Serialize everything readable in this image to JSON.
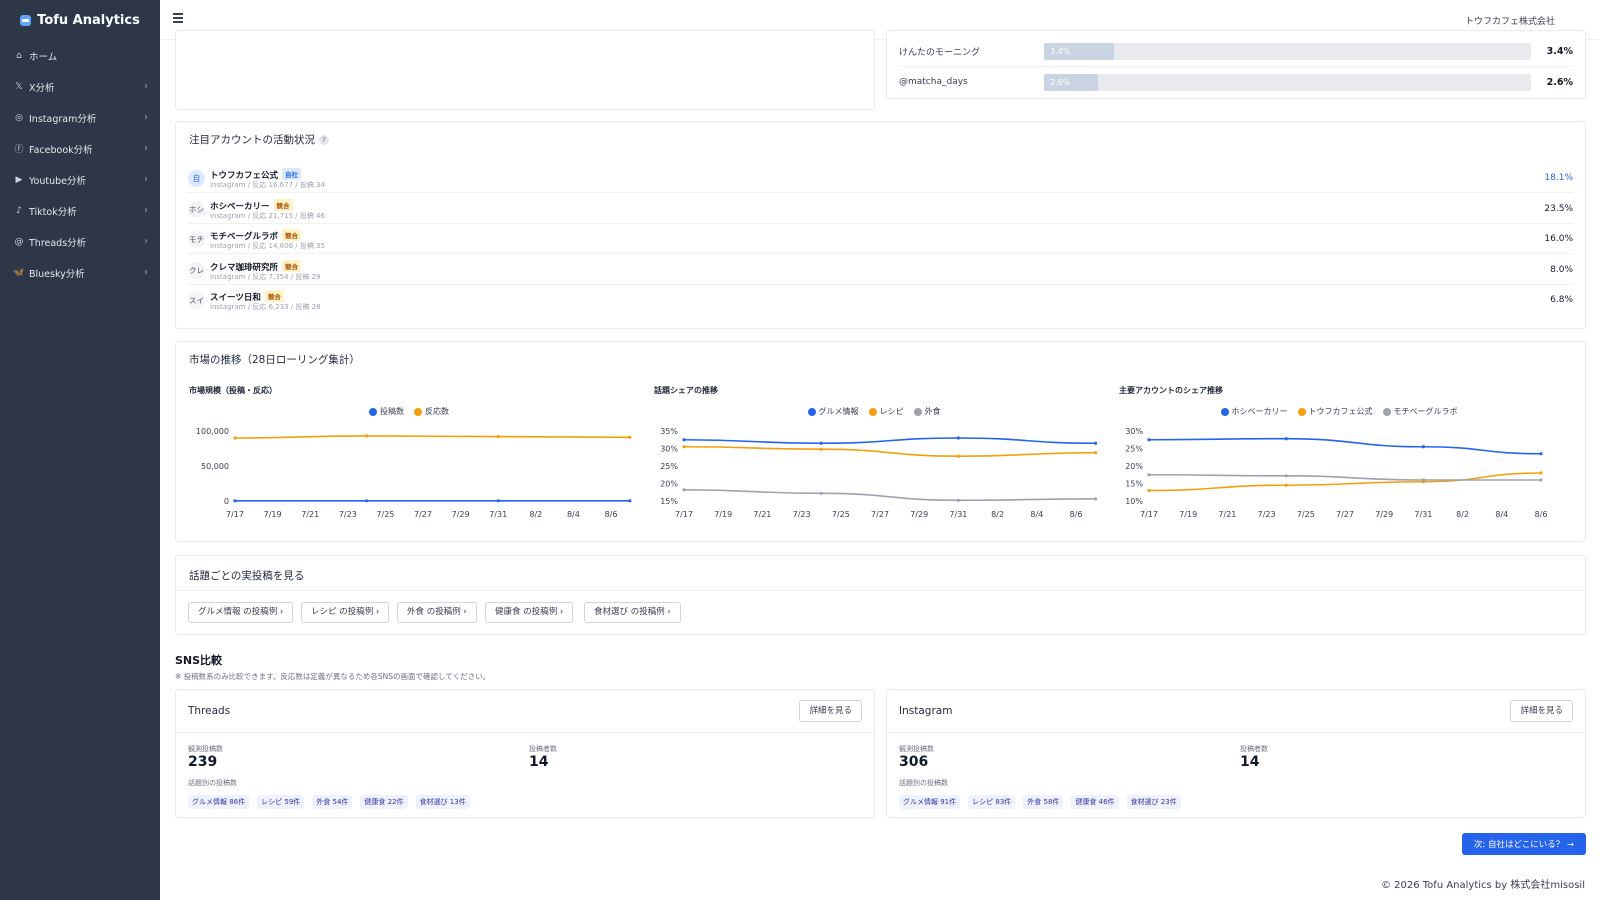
{
  "brand": {
    "name": "Tofu Analytics"
  },
  "sidebar": {
    "items": [
      {
        "icon": "⌂",
        "icon_name": "home-icon",
        "label": "ホーム",
        "chevron": false
      },
      {
        "icon": "𝕏",
        "icon_name": "x-icon",
        "label": "X分析",
        "chevron": true
      },
      {
        "icon": "◎",
        "icon_name": "instagram-icon",
        "label": "Instagram分析",
        "chevron": true
      },
      {
        "icon": "ⓕ",
        "icon_name": "facebook-icon",
        "label": "Facebook分析",
        "chevron": true
      },
      {
        "icon": "▶",
        "icon_name": "youtube-icon",
        "label": "Youtube分析",
        "chevron": true
      },
      {
        "icon": "♪",
        "icon_name": "tiktok-icon",
        "label": "Tiktok分析",
        "chevron": true
      },
      {
        "icon": "@",
        "icon_name": "threads-icon",
        "label": "Threads分析",
        "chevron": true
      },
      {
        "icon": "🦋",
        "icon_name": "bluesky-icon",
        "label": "Bluesky分析",
        "chevron": true
      }
    ]
  },
  "header": {
    "company": "トウフカフェ株式会社"
  },
  "ranking": {
    "rows": [
      {
        "name": "けんたのモーニング",
        "value": 3.4,
        "label": "3.4%"
      },
      {
        "name": "@matcha_days",
        "value": 2.6,
        "label": "2.6%"
      }
    ],
    "max": 23.5
  },
  "accounts": {
    "title": "注目アカウントの活動状況",
    "help": "?",
    "rows": [
      {
        "avatar": "自",
        "name": "トウフカフェ公式",
        "badge": "自社",
        "self": true,
        "meta": "instagram / 反応 16,677 / 投稿 34",
        "share": "18.1%"
      },
      {
        "avatar": "ホシ",
        "name": "ホシベーカリー",
        "badge": "競合",
        "self": false,
        "meta": "instagram / 反応 21,715 / 投稿 46",
        "share": "23.5%"
      },
      {
        "avatar": "モチ",
        "name": "モチベーグルラボ",
        "badge": "競合",
        "self": false,
        "meta": "instagram / 反応 14,806 / 投稿 35",
        "share": "16.0%"
      },
      {
        "avatar": "クレ",
        "name": "クレマ珈琲研究所",
        "badge": "競合",
        "self": false,
        "meta": "instagram / 反応 7,354 / 投稿 29",
        "share": "8.0%"
      },
      {
        "avatar": "スイ",
        "name": "スイーツ日和",
        "badge": "競合",
        "self": false,
        "meta": "instagram / 反応 6,233 / 投稿 28",
        "share": "6.8%"
      }
    ]
  },
  "market": {
    "title": "市場の推移（28日ローリング集計）"
  },
  "chart_data": [
    {
      "type": "line",
      "title": "市場規模（投稿・反応）",
      "x": [
        "7/17",
        "7/19",
        "7/21",
        "7/23",
        "7/25",
        "7/27",
        "7/29",
        "7/31",
        "8/2",
        "8/4",
        "8/6"
      ],
      "yticks": [
        0,
        50000,
        100000
      ],
      "ytick_labels": [
        "0",
        "50,000",
        "100,000"
      ],
      "ylim": [
        0,
        100000
      ],
      "series": [
        {
          "name": "投稿数",
          "color": "#2563eb",
          "points": [
            [
              0,
              300
            ],
            [
              3.5,
              300
            ],
            [
              7,
              300
            ],
            [
              10.5,
              300
            ]
          ]
        },
        {
          "name": "反応数",
          "color": "#f59e0b",
          "points": [
            [
              0,
              90000
            ],
            [
              3.5,
              93000
            ],
            [
              7,
              92000
            ],
            [
              10.5,
              91000
            ]
          ]
        }
      ]
    },
    {
      "type": "line",
      "title": "話題シェアの推移",
      "x": [
        "7/17",
        "7/19",
        "7/21",
        "7/23",
        "7/25",
        "7/27",
        "7/29",
        "7/31",
        "8/2",
        "8/4",
        "8/6"
      ],
      "yticks": [
        15,
        20,
        25,
        30,
        35
      ],
      "ytick_labels": [
        "15%",
        "20%",
        "25%",
        "30%",
        "35%"
      ],
      "ylim": [
        15,
        35
      ],
      "series": [
        {
          "name": "グルメ情報",
          "color": "#2563eb",
          "points": [
            [
              0,
              32.5
            ],
            [
              3.5,
              31.5
            ],
            [
              7,
              33
            ],
            [
              10.5,
              31.5
            ]
          ]
        },
        {
          "name": "レシピ",
          "color": "#f59e0b",
          "points": [
            [
              0,
              30.5
            ],
            [
              3.5,
              29.8
            ],
            [
              7,
              27.8
            ],
            [
              10.5,
              28.8
            ]
          ]
        },
        {
          "name": "外食",
          "color": "#9ca3af",
          "points": [
            [
              0,
              18.2
            ],
            [
              3.5,
              17.2
            ],
            [
              7,
              15.2
            ],
            [
              10.5,
              15.6
            ]
          ]
        }
      ]
    },
    {
      "type": "line",
      "title": "主要アカウントのシェア推移",
      "x": [
        "7/17",
        "7/19",
        "7/21",
        "7/23",
        "7/25",
        "7/27",
        "7/29",
        "7/31",
        "8/2",
        "8/4",
        "8/6"
      ],
      "yticks": [
        10,
        15,
        20,
        25,
        30
      ],
      "ytick_labels": [
        "10%",
        "15%",
        "20%",
        "25%",
        "30%"
      ],
      "ylim": [
        10,
        30
      ],
      "series": [
        {
          "name": "ホシベーカリー",
          "color": "#2563eb",
          "points": [
            [
              0,
              27.5
            ],
            [
              3.5,
              27.8
            ],
            [
              7,
              25.5
            ],
            [
              10,
              23.5
            ]
          ]
        },
        {
          "name": "トウフカフェ公式",
          "color": "#f59e0b",
          "points": [
            [
              0,
              13
            ],
            [
              3.5,
              14.5
            ],
            [
              7,
              15.5
            ],
            [
              10,
              18
            ]
          ]
        },
        {
          "name": "モチベーグルラボ",
          "color": "#9ca3af",
          "points": [
            [
              0,
              17.5
            ],
            [
              3.5,
              17.2
            ],
            [
              7,
              16
            ],
            [
              10,
              16
            ]
          ]
        }
      ]
    }
  ],
  "topics": {
    "title": "話題ごとの実投稿を見る",
    "buttons": [
      "グルメ情報 の投稿例 ›",
      "レシピ の投稿例 ›",
      "外食 の投稿例 ›",
      "健康食 の投稿例 ›",
      "食材選び の投稿例 ›"
    ]
  },
  "sns": {
    "title": "SNS比較",
    "note": "※ 投稿数系のみ比較できます。反応数は定義が異なるため各SNSの画面で確認してください。",
    "detail_label": "詳細を見る",
    "posts_label": "観測投稿数",
    "authors_label": "投稿者数",
    "topic_label": "話題別の投稿数",
    "cards": [
      {
        "name": "Threads",
        "posts": "239",
        "authors": "14",
        "chips": [
          "グルメ情報 86件",
          "レシピ 59件",
          "外食 54件",
          "健康食 22件",
          "食材選び 13件"
        ]
      },
      {
        "name": "Instagram",
        "posts": "306",
        "authors": "14",
        "chips": [
          "グルメ情報 91件",
          "レシピ 83件",
          "外食 58件",
          "健康食 46件",
          "食材選び 23件"
        ]
      }
    ]
  },
  "next_button": "次: 自社はどこにいる？ →",
  "footer": "© 2026 Tofu Analytics by  株式会社misosil"
}
